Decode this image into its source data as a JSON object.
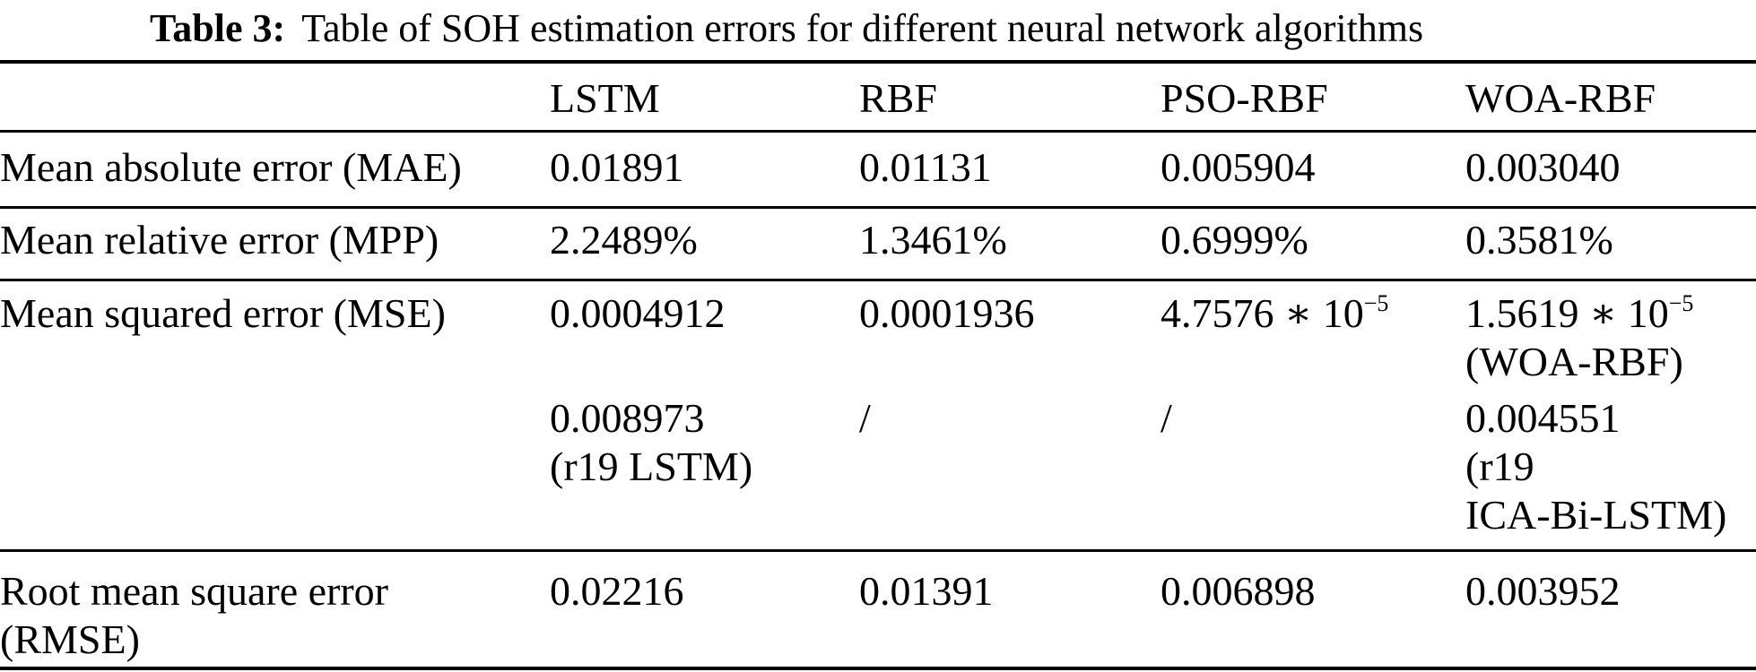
{
  "colors": {
    "background": "#ffffff",
    "text": "#000000",
    "rule": "#000000"
  },
  "caption": {
    "tag": "Table 3:",
    "text": "Table of SOH estimation errors for different neural network algorithms"
  },
  "columns": [
    "LSTM",
    "RBF",
    "PSO-RBF",
    "WOA-RBF"
  ],
  "rows": {
    "mae": {
      "label": "Mean absolute error (MAE)",
      "lstm": "0.01891",
      "rbf": "0.01131",
      "pso": "0.005904",
      "woa": "0.003040"
    },
    "mpp": {
      "label": "Mean relative error (MPP)",
      "lstm": "2.2489%",
      "rbf": "1.3461%",
      "pso": "0.6999%",
      "woa": "0.3581%"
    },
    "mse": {
      "label": "Mean squared error (MSE)",
      "lstm": {
        "value": "0.0004912",
        "value2": "0.008973",
        "value2_note": "(r19 LSTM)"
      },
      "rbf": {
        "value": "0.0001936",
        "value2": "/"
      },
      "pso": {
        "value_base": "4.7576 ∗ 10",
        "value_exp": "−5",
        "value2": "/"
      },
      "woa": {
        "value_base": "1.5619 ∗ 10",
        "value_exp": "−5",
        "value_note": "(WOA-RBF)",
        "value2": "0.004551",
        "value2_note_line1": "(r19",
        "value2_note_line2": "ICA-Bi-LSTM)"
      }
    },
    "rmse": {
      "label_line1": "Root mean square error",
      "label_line2": "(RMSE)",
      "lstm": "0.02216",
      "rbf": "0.01391",
      "pso": "0.006898",
      "woa": "0.003952"
    }
  }
}
